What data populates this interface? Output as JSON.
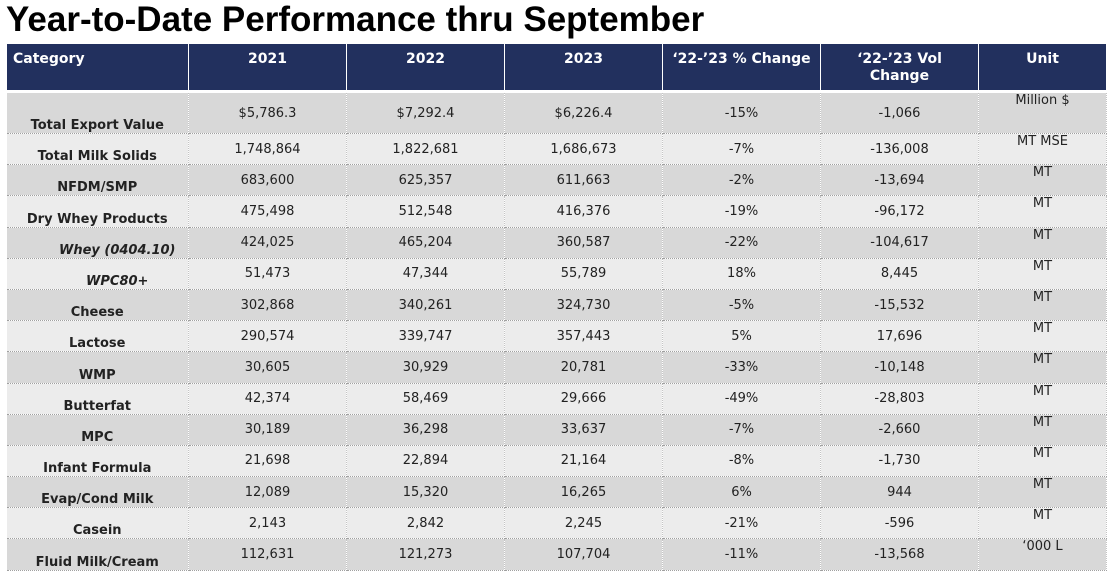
{
  "title": "Year-to-Date Performance thru September",
  "headers": {
    "category": "Category",
    "y2021": "2021",
    "y2022": "2022",
    "y2023": "2023",
    "pct_change": "‘22-’23 % Change",
    "vol_change": "‘22-’23 Vol Change",
    "unit": "Unit"
  },
  "colors": {
    "header_bg": "#22305e",
    "negative": "#b83a3a",
    "row_dark": "#d8d8d8",
    "row_light": "#ececec"
  },
  "rows": [
    {
      "category": "Total Export Value",
      "y2021": "$5,786.3",
      "y2022": "$7,292.4",
      "y2023": "$6,226.4",
      "pct": "-15%",
      "vol": "-1,066",
      "unit": "Million $"
    },
    {
      "category": "Total Milk Solids",
      "y2021": "1,748,864",
      "y2022": "1,822,681",
      "y2023": "1,686,673",
      "pct": "-7%",
      "vol": "-136,008",
      "unit": "MT MSE"
    },
    {
      "category": "NFDM/SMP",
      "y2021": "683,600",
      "y2022": "625,357",
      "y2023": "611,663",
      "pct": "-2%",
      "vol": "-13,694",
      "unit": "MT"
    },
    {
      "category": "Dry Whey Products",
      "y2021": "475,498",
      "y2022": "512,548",
      "y2023": "416,376",
      "pct": "-19%",
      "vol": "-96,172",
      "unit": "MT"
    },
    {
      "category": "Whey (0404.10)",
      "y2021": "424,025",
      "y2022": "465,204",
      "y2023": "360,587",
      "pct": "-22%",
      "vol": "-104,617",
      "unit": "MT"
    },
    {
      "category": "WPC80+",
      "y2021": "51,473",
      "y2022": "47,344",
      "y2023": "55,789",
      "pct": "18%",
      "vol": "8,445",
      "unit": "MT"
    },
    {
      "category": "Cheese",
      "y2021": "302,868",
      "y2022": "340,261",
      "y2023": "324,730",
      "pct": "-5%",
      "vol": "-15,532",
      "unit": "MT"
    },
    {
      "category": "Lactose",
      "y2021": "290,574",
      "y2022": "339,747",
      "y2023": "357,443",
      "pct": "5%",
      "vol": "17,696",
      "unit": "MT"
    },
    {
      "category": "WMP",
      "y2021": "30,605",
      "y2022": "30,929",
      "y2023": "20,781",
      "pct": "-33%",
      "vol": "-10,148",
      "unit": "MT"
    },
    {
      "category": "Butterfat",
      "y2021": "42,374",
      "y2022": "58,469",
      "y2023": "29,666",
      "pct": "-49%",
      "vol": "-28,803",
      "unit": "MT"
    },
    {
      "category": "MPC",
      "y2021": "30,189",
      "y2022": "36,298",
      "y2023": "33,637",
      "pct": "-7%",
      "vol": "-2,660",
      "unit": "MT"
    },
    {
      "category": "Infant Formula",
      "y2021": "21,698",
      "y2022": "22,894",
      "y2023": "21,164",
      "pct": "-8%",
      "vol": "-1,730",
      "unit": "MT"
    },
    {
      "category": "Evap/Cond Milk",
      "y2021": "12,089",
      "y2022": "15,320",
      "y2023": "16,265",
      "pct": "6%",
      "vol": "944",
      "unit": "MT"
    },
    {
      "category": "Casein",
      "y2021": "2,143",
      "y2022": "2,842",
      "y2023": "2,245",
      "pct": "-21%",
      "vol": "-596",
      "unit": "MT"
    },
    {
      "category": "Fluid Milk/Cream",
      "y2021": "112,631",
      "y2022": "121,273",
      "y2023": "107,704",
      "pct": "-11%",
      "vol": "-13,568",
      "unit": "‘000 L"
    }
  ]
}
